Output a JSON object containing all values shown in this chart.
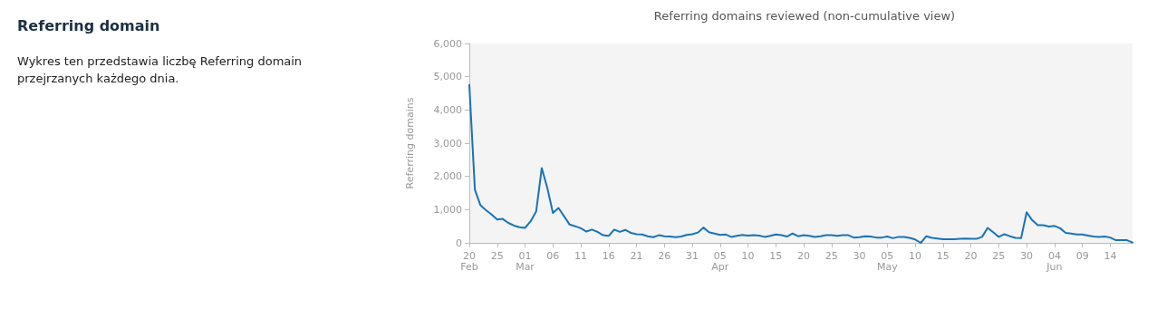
{
  "chart_data": {
    "type": "line",
    "title": "Referring domains reviewed (non-cumulative view)",
    "ylabel": "Referring domains",
    "annotations": [
      "Referring domain",
      "Wykres ten przedstawia liczbę Referring domain przejrzanych każdego dnia."
    ],
    "x": [
      "--02-20",
      "--02-21",
      "--02-22",
      "--02-23",
      "--02-24",
      "--02-25",
      "--02-26",
      "--02-27",
      "--02-28",
      "--02-29",
      "--03-01",
      "--03-02",
      "--03-03",
      "--03-04",
      "--03-05",
      "--03-06",
      "--03-07",
      "--03-08",
      "--03-09",
      "--03-10",
      "--03-11",
      "--03-12",
      "--03-13",
      "--03-14",
      "--03-15",
      "--03-16",
      "--03-17",
      "--03-18",
      "--03-19",
      "--03-20",
      "--03-21",
      "--03-22",
      "--03-23",
      "--03-24",
      "--03-25",
      "--03-26",
      "--03-27",
      "--03-28",
      "--03-29",
      "--03-30",
      "--03-31",
      "--04-01",
      "--04-02",
      "--04-03",
      "--04-04",
      "--04-05",
      "--04-06",
      "--04-07",
      "--04-08",
      "--04-09",
      "--04-10",
      "--04-11",
      "--04-12",
      "--04-13",
      "--04-14",
      "--04-15",
      "--04-16",
      "--04-17",
      "--04-18",
      "--04-19",
      "--04-20",
      "--04-21",
      "--04-22",
      "--04-23",
      "--04-24",
      "--04-25",
      "--04-26",
      "--04-27",
      "--04-28",
      "--04-29",
      "--04-30",
      "--05-01",
      "--05-02",
      "--05-03",
      "--05-04",
      "--05-05",
      "--05-06",
      "--05-07",
      "--05-08",
      "--05-09",
      "--05-10",
      "--05-11",
      "--05-12",
      "--05-13",
      "--05-14",
      "--05-15",
      "--05-16",
      "--05-17",
      "--05-18",
      "--05-19",
      "--05-20",
      "--05-21",
      "--05-22",
      "--05-23",
      "--05-24",
      "--05-25",
      "--05-26",
      "--05-27",
      "--05-28",
      "--05-29",
      "--05-30",
      "--05-31",
      "--06-01",
      "--06-02",
      "--06-03",
      "--06-04",
      "--06-05",
      "--06-06",
      "--06-07",
      "--06-08",
      "--06-09",
      "--06-10",
      "--06-11",
      "--06-12",
      "--06-13",
      "--06-14",
      "--06-15",
      "--06-16",
      "--06-17",
      "--06-18"
    ],
    "series": [
      {
        "color": "#1a73b5",
        "values": [
          4750,
          1600,
          1130,
          980,
          850,
          700,
          720,
          600,
          520,
          470,
          450,
          650,
          950,
          2250,
          1650,
          900,
          1050,
          800,
          550,
          500,
          440,
          340,
          400,
          330,
          230,
          210,
          400,
          330,
          390,
          300,
          260,
          250,
          200,
          170,
          230,
          200,
          190,
          170,
          190,
          240,
          260,
          310,
          460,
          320,
          280,
          240,
          250,
          180,
          210,
          240,
          220,
          230,
          220,
          180,
          210,
          250,
          230,
          190,
          280,
          200,
          230,
          210,
          180,
          200,
          230,
          230,
          210,
          230,
          230,
          160,
          170,
          200,
          190,
          160,
          160,
          190,
          140,
          180,
          180,
          150,
          100,
          0,
          200,
          150,
          130,
          110,
          110,
          110,
          120,
          130,
          120,
          120,
          180,
          450,
          320,
          180,
          260,
          200,
          150,
          140,
          920,
          680,
          530,
          530,
          490,
          510,
          440,
          300,
          280,
          250,
          250,
          220,
          190,
          180,
          190,
          160,
          80,
          80,
          80,
          10
        ]
      }
    ],
    "xlim": [
      "--02-20",
      "--06-18"
    ],
    "xticks": [
      {
        "value": "--02-20",
        "label": "20\nFeb"
      },
      {
        "value": "--02-25",
        "label": "25"
      },
      {
        "value": "--03-01",
        "label": "01\nMar"
      },
      {
        "value": "--03-06",
        "label": "06"
      },
      {
        "value": "--03-11",
        "label": "11"
      },
      {
        "value": "--03-16",
        "label": "16"
      },
      {
        "value": "--03-21",
        "label": "21"
      },
      {
        "value": "--03-26",
        "label": "26"
      },
      {
        "value": "--03-31",
        "label": "31"
      },
      {
        "value": "--04-05",
        "label": "05\nApr"
      },
      {
        "value": "--04-10",
        "label": "10"
      },
      {
        "value": "--04-15",
        "label": "15"
      },
      {
        "value": "--04-20",
        "label": "20"
      },
      {
        "value": "--04-25",
        "label": "25"
      },
      {
        "value": "--04-30",
        "label": "30"
      },
      {
        "value": "--05-05",
        "label": "05\nMay"
      },
      {
        "value": "--05-10",
        "label": "10"
      },
      {
        "value": "--05-15",
        "label": "15"
      },
      {
        "value": "--05-20",
        "label": "20"
      },
      {
        "value": "--05-25",
        "label": "25"
      },
      {
        "value": "--05-30",
        "label": "30"
      },
      {
        "value": "--06-04",
        "label": "04\nJun"
      },
      {
        "value": "--06-09",
        "label": "09"
      },
      {
        "value": "--06-14",
        "label": "14"
      }
    ],
    "ylim": [
      0,
      6000
    ],
    "yticks": [
      0,
      {
        "value": 1000,
        "label": "1,000"
      },
      {
        "value": 2000,
        "label": "2,000"
      },
      {
        "value": 3000,
        "label": "3,000"
      },
      {
        "value": 4000,
        "label": "4,000"
      },
      {
        "value": 5000,
        "label": "5,000"
      },
      {
        "value": 6000,
        "label": "6,000"
      }
    ],
    "grid": false,
    "marker": "none",
    "line_style": "solid"
  }
}
